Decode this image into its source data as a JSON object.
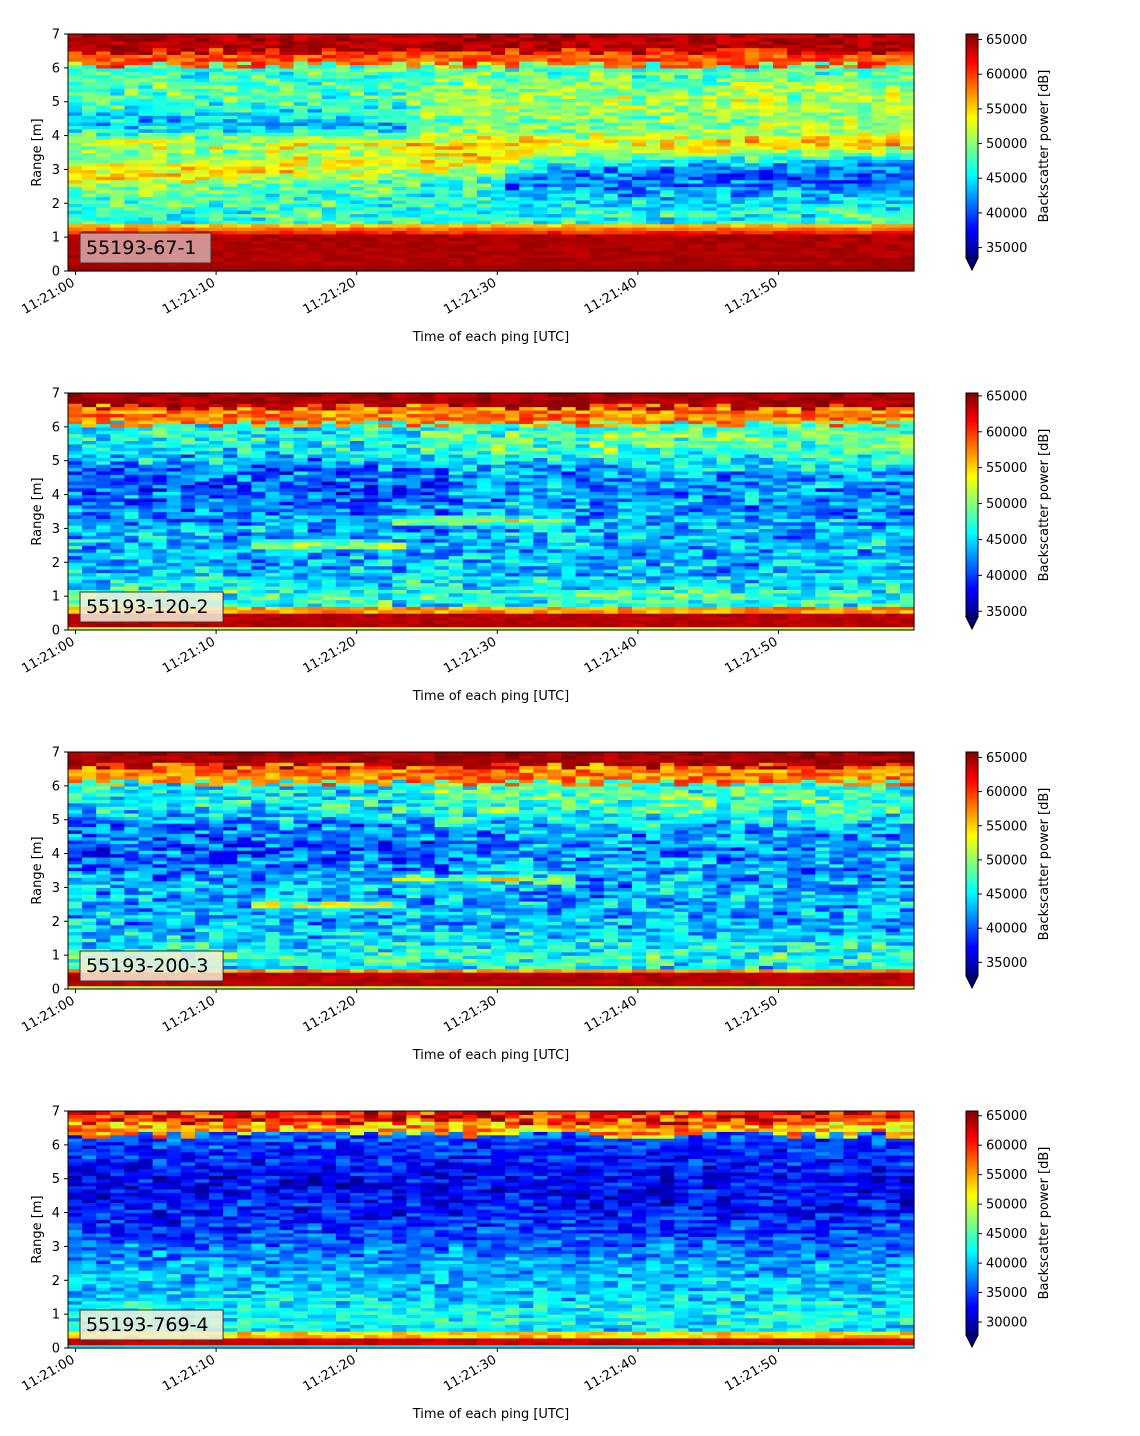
{
  "chart_data": [
    {
      "type": "heatmap",
      "label": "55193-67-1",
      "xlabel": "Time of each ping [UTC]",
      "ylabel": "Range [m]",
      "colorbar_label": "Backscatter power [dB]",
      "x_ticks": [
        "11:21:00",
        "11:21:10",
        "11:21:20",
        "11:21:30",
        "11:21:40",
        "11:21:50"
      ],
      "x_range": [
        "11:21:00",
        "11:22:00"
      ],
      "y_ticks": [
        0,
        1,
        2,
        3,
        4,
        5,
        6,
        7
      ],
      "ylim": [
        0,
        7
      ],
      "color_ticks": [
        35000,
        40000,
        45000,
        50000,
        55000,
        60000,
        65000
      ],
      "clim": [
        33500,
        65800
      ],
      "colormap": "jet",
      "badge_color": "#d9a9a9",
      "features": [
        {
          "name": "bottom high band",
          "range_m": [
            0.25,
            1.15
          ],
          "value": 65000
        },
        {
          "name": "surface high band",
          "range_m": [
            6.4,
            7.0
          ],
          "value": 65000
        },
        {
          "name": "mid-water layer",
          "range_m": [
            2.6,
            3.9
          ],
          "value": 54000
        }
      ]
    },
    {
      "type": "heatmap",
      "label": "55193-120-2",
      "xlabel": "Time of each ping [UTC]",
      "ylabel": "Range [m]",
      "colorbar_label": "Backscatter power [dB]",
      "x_ticks": [
        "11:21:00",
        "11:21:10",
        "11:21:20",
        "11:21:30",
        "11:21:40",
        "11:21:50"
      ],
      "x_range": [
        "11:21:00",
        "11:22:00"
      ],
      "y_ticks": [
        0,
        1,
        2,
        3,
        4,
        5,
        6,
        7
      ],
      "ylim": [
        0,
        7
      ],
      "color_ticks": [
        35000,
        40000,
        45000,
        50000,
        55000,
        60000,
        65000
      ],
      "clim": [
        34200,
        65400
      ],
      "colormap": "jet",
      "badge_color": "#f5eeda",
      "features": [
        {
          "name": "bottom high band",
          "range_m": [
            0.1,
            0.55
          ],
          "value": 65000
        },
        {
          "name": "surface high band",
          "range_m": [
            6.5,
            7.0
          ],
          "value": 64000
        },
        {
          "name": "thin layer",
          "range_m": [
            2.4,
            3.3
          ],
          "value": 58000
        }
      ]
    },
    {
      "type": "heatmap",
      "label": "55193-200-3",
      "xlabel": "Time of each ping [UTC]",
      "ylabel": "Range [m]",
      "colorbar_label": "Backscatter power [dB]",
      "x_ticks": [
        "11:21:00",
        "11:21:10",
        "11:21:20",
        "11:21:30",
        "11:21:40",
        "11:21:50"
      ],
      "x_range": [
        "11:21:00",
        "11:22:00"
      ],
      "y_ticks": [
        0,
        1,
        2,
        3,
        4,
        5,
        6,
        7
      ],
      "ylim": [
        0,
        7
      ],
      "color_ticks": [
        35000,
        40000,
        45000,
        50000,
        55000,
        60000,
        65000
      ],
      "clim": [
        33000,
        65800
      ],
      "colormap": "jet",
      "badge_color": "#f5eeda",
      "features": [
        {
          "name": "bottom high band",
          "range_m": [
            0.1,
            0.5
          ],
          "value": 65000
        },
        {
          "name": "surface high band",
          "range_m": [
            6.4,
            7.0
          ],
          "value": 64000
        },
        {
          "name": "thin layer",
          "range_m": [
            2.4,
            3.3
          ],
          "value": 56000
        }
      ]
    },
    {
      "type": "heatmap",
      "label": "55193-769-4",
      "xlabel": "Time of each ping [UTC]",
      "ylabel": "Range [m]",
      "colorbar_label": "Backscatter power [dB]",
      "x_ticks": [
        "11:21:00",
        "11:21:10",
        "11:21:20",
        "11:21:30",
        "11:21:40",
        "11:21:50"
      ],
      "x_range": [
        "11:21:00",
        "11:22:00"
      ],
      "y_ticks": [
        0,
        1,
        2,
        3,
        4,
        5,
        6,
        7
      ],
      "ylim": [
        0,
        7
      ],
      "color_ticks": [
        30000,
        35000,
        40000,
        45000,
        50000,
        55000,
        60000,
        65000
      ],
      "clim": [
        27800,
        65800
      ],
      "colormap": "jet",
      "badge_color": "#f5eeda",
      "features": [
        {
          "name": "bottom high band",
          "range_m": [
            0.1,
            0.35
          ],
          "value": 65000
        },
        {
          "name": "surface high band",
          "range_m": [
            6.5,
            7.0
          ],
          "value": 62000
        }
      ]
    }
  ]
}
